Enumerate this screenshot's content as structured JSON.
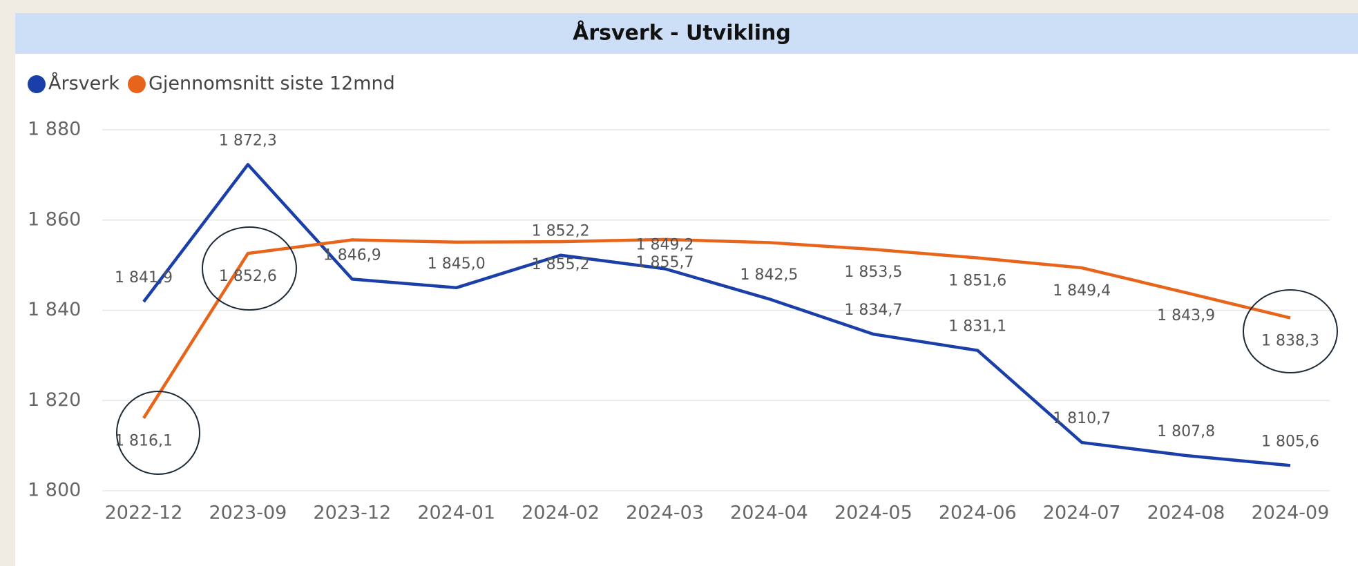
{
  "chart_data": {
    "type": "line",
    "title": "Årsverk - Utvikling",
    "categories": [
      "2022-12",
      "2023-09",
      "2023-12",
      "2024-01",
      "2024-02",
      "2024-03",
      "2024-04",
      "2024-05",
      "2024-06",
      "2024-07",
      "2024-08",
      "2024-09"
    ],
    "series": [
      {
        "name": "Årsverk",
        "color": "#1a3fa8",
        "values": [
          1841.9,
          1872.3,
          1846.9,
          1845.0,
          1852.2,
          1849.2,
          1842.5,
          1834.7,
          1831.1,
          1810.7,
          1807.8,
          1805.6
        ],
        "value_labels": [
          "1 841,9",
          "1 872,3",
          "1 846,9",
          "1 845,0",
          "1 852,2",
          "1 849,2",
          "1 842,5",
          "1 834,7",
          "1 831,1",
          "1 810,7",
          "1 807,8",
          "1 805,6"
        ]
      },
      {
        "name": "Gjennomsnitt siste 12mnd",
        "color": "#e8641b",
        "values": [
          1816.1,
          1852.6,
          1855.6,
          1855.1,
          1855.2,
          1855.7,
          1855.0,
          1853.5,
          1851.6,
          1849.4,
          1843.9,
          1838.3
        ],
        "value_labels": [
          "1 816,1",
          "1 852,6",
          null,
          null,
          "1 855,2",
          "1 855,7",
          null,
          "1 853,5",
          "1 851,6",
          "1 849,4",
          "1 843,9",
          "1 838,3"
        ]
      }
    ],
    "ylim": [
      1800,
      1880
    ],
    "yticks": [
      {
        "value": 1800,
        "label": "1 800"
      },
      {
        "value": 1820,
        "label": "1 820"
      },
      {
        "value": 1840,
        "label": "1 840"
      },
      {
        "value": 1860,
        "label": "1 860"
      },
      {
        "value": 1880,
        "label": "1 880"
      }
    ],
    "grid": true,
    "legend": "top-left"
  }
}
